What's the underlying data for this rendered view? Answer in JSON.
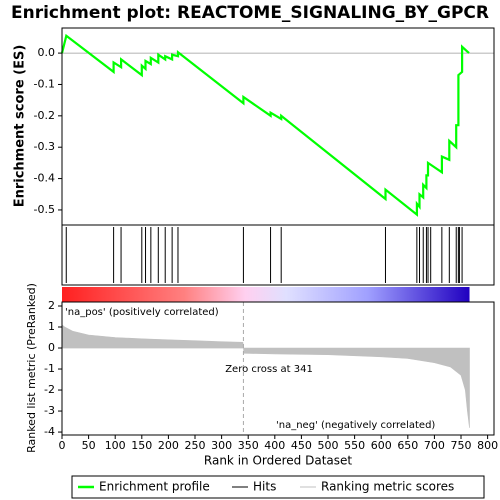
{
  "chart_data": [
    {
      "type": "line",
      "title": "Enrichment plot: REACTOME_SIGNALING_BY_GPCR",
      "ylabel": "Enrichment score (ES)",
      "xlim": [
        0,
        812
      ],
      "ylim": [
        -0.548,
        0.08
      ],
      "yticks": [
        {
          "value": 0,
          "label": "0.0"
        },
        -0.1,
        -0.2,
        -0.3,
        -0.4,
        -0.5
      ],
      "x": [
        0,
        8,
        97,
        97,
        111,
        111,
        150,
        150,
        157,
        157,
        167,
        167,
        181,
        181,
        194,
        194,
        207,
        207,
        218,
        218,
        341,
        341,
        392,
        392,
        412,
        412,
        608,
        608,
        667,
        667,
        672,
        672,
        679,
        679,
        685,
        685,
        688,
        688,
        714,
        714,
        728,
        728,
        741,
        741,
        745,
        745,
        752,
        752,
        765
      ],
      "series": [
        {
          "name": "Enrichment profile",
          "color": "#00ff00",
          "values": [
            0,
            0.055,
            -0.06,
            -0.03,
            -0.045,
            -0.02,
            -0.07,
            -0.04,
            -0.05,
            -0.025,
            -0.035,
            -0.015,
            -0.03,
            -0.005,
            -0.02,
            -0.01,
            -0.02,
            -0.005,
            -0.01,
            0.003,
            -0.16,
            -0.14,
            -0.2,
            -0.19,
            -0.21,
            -0.2,
            -0.465,
            -0.435,
            -0.515,
            -0.48,
            -0.49,
            -0.45,
            -0.46,
            -0.42,
            -0.43,
            -0.39,
            -0.39,
            -0.35,
            -0.38,
            -0.33,
            -0.34,
            -0.28,
            -0.3,
            -0.23,
            -0.23,
            -0.07,
            -0.06,
            0.02,
            0.0
          ]
        }
      ]
    },
    {
      "type": "hits",
      "xlim": [
        0,
        812
      ],
      "series": [
        {
          "name": "Hits",
          "color": "#000000",
          "x": [
            8,
            97,
            111,
            150,
            157,
            167,
            181,
            194,
            207,
            218,
            341,
            392,
            412,
            608,
            667,
            672,
            679,
            685,
            688,
            693,
            714,
            728,
            741,
            745,
            747,
            752
          ]
        }
      ]
    },
    {
      "type": "area",
      "xlabel": "Rank in Ordered Dataset",
      "ylabel": "Ranked list metric (PreRanked)",
      "xlim": [
        0,
        812
      ],
      "ylim": [
        -4.14,
        2.19
      ],
      "xticks": [
        0,
        50,
        100,
        150,
        200,
        250,
        300,
        350,
        400,
        450,
        500,
        550,
        600,
        650,
        700,
        750,
        800
      ],
      "yticks": [
        2,
        1,
        0,
        -1,
        -2,
        -3,
        -4
      ],
      "x": [
        0,
        5,
        20,
        50,
        100,
        150,
        200,
        250,
        300,
        340,
        341,
        342,
        400,
        500,
        600,
        650,
        700,
        730,
        750,
        758,
        762,
        766
      ],
      "series": [
        {
          "name": "Ranking metric scores",
          "color": "#c0c0c0",
          "values": [
            1.1,
            1.0,
            0.8,
            0.62,
            0.5,
            0.44,
            0.39,
            0.35,
            0.3,
            0.27,
            0,
            -0.25,
            -0.28,
            -0.32,
            -0.42,
            -0.5,
            -0.7,
            -0.9,
            -1.3,
            -2.0,
            -3.0,
            -3.8
          ]
        }
      ],
      "annotations": [
        "'na_pos' (positively correlated)",
        "Zero cross at 341",
        "'na_neg' (negatively correlated)"
      ]
    }
  ]
}
